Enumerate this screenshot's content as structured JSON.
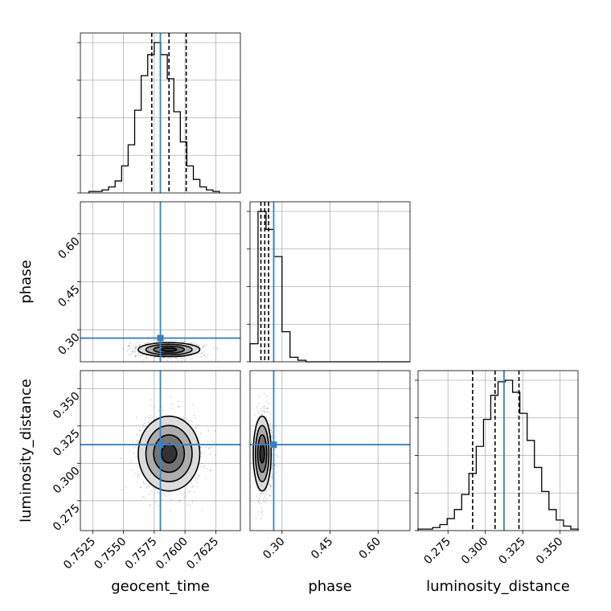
{
  "chart_data": {
    "type": "corner",
    "parameters": [
      "geocent_time",
      "phase",
      "luminosity_distance"
    ],
    "axis_labels": {
      "geocent_time": "geocent_time",
      "phase": "phase",
      "luminosity_distance": "luminosity_distance"
    },
    "ranges": {
      "geocent_time": [
        0.7515,
        0.7645
      ],
      "phase": [
        0.2,
        0.7
      ],
      "luminosity_distance": [
        0.255,
        0.362
      ]
    },
    "ticks": {
      "geocent_time": [
        "0.7525",
        "0.7550",
        "0.7575",
        "0.7600",
        "0.7625"
      ],
      "phase": [
        "0.30",
        "0.45",
        "0.60"
      ],
      "luminosity_distance": [
        "0.275",
        "0.300",
        "0.325",
        "0.350"
      ]
    },
    "truths": {
      "geocent_time": 0.758,
      "phase": 0.274,
      "luminosity_distance": 0.3125
    },
    "quantiles": {
      "geocent_time": [
        0.7573,
        0.7587,
        0.7601
      ],
      "phase": [
        0.234,
        0.246,
        0.258
      ],
      "luminosity_distance": [
        0.2915,
        0.3065,
        0.3225
      ]
    },
    "modes": {
      "geocent_time": 0.7587,
      "phase": 0.238,
      "luminosity_distance": 0.3065
    },
    "histograms": {
      "geocent_time": {
        "edges_range": [
          0.7522,
          0.7628
        ],
        "counts": [
          1,
          1,
          2,
          4,
          8,
          18,
          32,
          55,
          78,
          92,
          100,
          92,
          76,
          54,
          34,
          18,
          9,
          4,
          2,
          1
        ]
      },
      "phase": {
        "edges_range": [
          0.2,
          0.7
        ],
        "counts": [
          12,
          100,
          88,
          70,
          20,
          3,
          1,
          0,
          0,
          0,
          0,
          0,
          0,
          0,
          0,
          0,
          0,
          0,
          0,
          0
        ]
      },
      "luminosity_distance": {
        "edges_range": [
          0.255,
          0.362
        ],
        "counts": [
          1,
          1,
          2,
          4,
          8,
          14,
          24,
          38,
          56,
          74,
          90,
          99,
          100,
          92,
          78,
          60,
          42,
          26,
          14,
          7,
          3,
          1
        ]
      }
    },
    "grid": true,
    "colors": {
      "truth": "#3c7fbf",
      "contour": "#000000",
      "points": "#555555"
    }
  }
}
